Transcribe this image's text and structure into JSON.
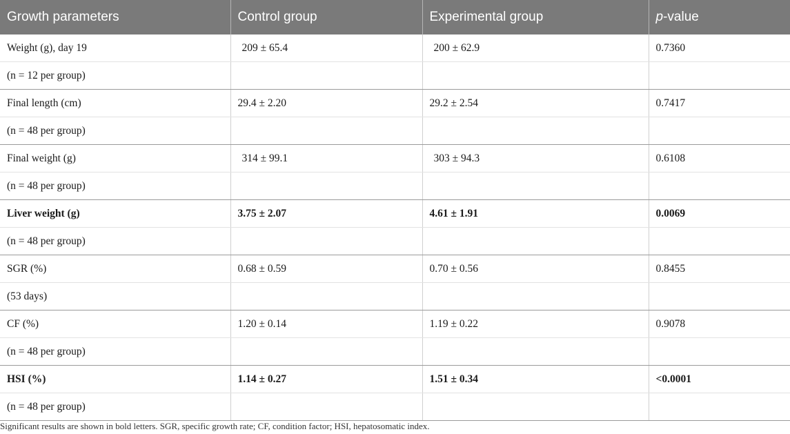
{
  "header": {
    "col1": "Growth parameters",
    "col2": "Control group",
    "col3": "Experimental group",
    "col4_italic": "p",
    "col4_rest": "-value"
  },
  "rows": [
    {
      "param": "Weight (g), day 19",
      "control": "209 ± 65.4",
      "experimental": "200 ± 62.9",
      "pvalue": "0.7360",
      "n": "(n = 12 per group)"
    },
    {
      "param": "Final length (cm)",
      "control": "29.4 ± 2.20",
      "experimental": "29.2 ± 2.54",
      "pvalue": "0.7417",
      "n": "(n = 48 per group)"
    },
    {
      "param": "Final weight (g)",
      "control": "314 ± 99.1",
      "experimental": "303 ± 94.3",
      "pvalue": "0.6108",
      "n": "(n = 48 per group)"
    },
    {
      "param": "Liver weight (g)",
      "control": "3.75 ± 2.07",
      "experimental": "4.61 ± 1.91",
      "pvalue": "0.0069",
      "n": "(n = 48 per group)"
    },
    {
      "param": "SGR (%)",
      "control": "0.68 ± 0.59",
      "experimental": "0.70 ± 0.56",
      "pvalue": "0.8455",
      "n": "(53 days)"
    },
    {
      "param": "CF (%)",
      "control": "1.20 ± 0.14",
      "experimental": "1.19 ± 0.22",
      "pvalue": "0.9078",
      "n": "(n = 48 per group)"
    },
    {
      "param": "HSI (%)",
      "control": "1.14 ± 0.27",
      "experimental": "1.51 ± 0.34",
      "pvalue": "<0.0001",
      "n": "(n = 48 per group)"
    }
  ],
  "footnote": "Significant results are shown in bold letters. SGR, specific growth rate; CF, condition factor; HSI, hepatosomatic index."
}
